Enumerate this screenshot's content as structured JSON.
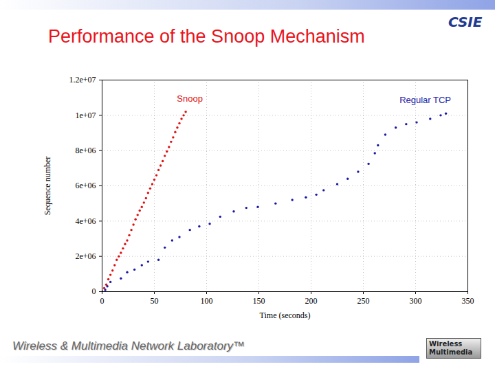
{
  "slide": {
    "title": "Performance of the Snoop Mechanism",
    "footer": "Wireless & Multimedia Network Laboratory™",
    "logos": [
      "CSIE",
      "Wireless Multimedia"
    ]
  },
  "chart_data": {
    "type": "scatter",
    "x_label": "Time (seconds)",
    "y_label": "Sequence number",
    "xlim": [
      0,
      350
    ],
    "xticks": [
      0,
      50,
      100,
      150,
      200,
      250,
      300,
      350
    ],
    "ylim": [
      0,
      12000000
    ],
    "yticks": [
      0,
      {
        "value": 2000000,
        "label": "2e+06"
      },
      {
        "value": 4000000,
        "label": "4e+06"
      },
      {
        "value": 6000000,
        "label": "6e+06"
      },
      {
        "value": 8000000,
        "label": "8e+06"
      },
      {
        "value": 10000000,
        "label": "1e+07"
      },
      {
        "value": 12000000,
        "label": "1.2e+07"
      }
    ],
    "grid": true,
    "series": [
      {
        "name": "Snoop",
        "color": "#e01010",
        "marker": "dot",
        "x": [
          0,
          2,
          4,
          6,
          8,
          10,
          12,
          14,
          16,
          18,
          20,
          22,
          24,
          26,
          28,
          30,
          32,
          34,
          36,
          38,
          40,
          42,
          44,
          46,
          48,
          50,
          52,
          54,
          56,
          58,
          60,
          62,
          64,
          66,
          68,
          70,
          72,
          74,
          76,
          78,
          80
        ],
        "values": [
          0,
          200000,
          400000,
          700000,
          950000,
          1200000,
          1500000,
          1800000,
          2000000,
          2200000,
          2450000,
          2700000,
          2900000,
          3200000,
          3500000,
          3800000,
          4100000,
          4350000,
          4600000,
          4800000,
          5050000,
          5300000,
          5600000,
          5850000,
          6100000,
          6350000,
          6600000,
          6900000,
          7150000,
          7400000,
          7700000,
          7950000,
          8200000,
          8500000,
          8750000,
          9050000,
          9300000,
          9550000,
          9800000,
          10000000,
          10200000
        ]
      },
      {
        "name": "Regular TCP",
        "color": "#1a1aa8",
        "marker": "dot",
        "x": [
          0,
          3,
          5,
          8,
          18,
          24,
          31,
          38,
          44,
          54,
          60,
          67,
          74,
          84,
          93,
          103,
          113,
          126,
          138,
          149,
          166,
          182,
          195,
          205,
          212,
          225,
          235,
          245,
          255,
          261,
          264,
          271,
          281,
          291,
          301,
          314,
          324,
          329
        ],
        "values": [
          0,
          100000,
          300000,
          550000,
          750000,
          1100000,
          1250000,
          1500000,
          1700000,
          1800000,
          2500000,
          2900000,
          3100000,
          3500000,
          3700000,
          3850000,
          4250000,
          4550000,
          4750000,
          4800000,
          5000000,
          5200000,
          5350000,
          5500000,
          5750000,
          6100000,
          6400000,
          6800000,
          7250000,
          7850000,
          8300000,
          8900000,
          9300000,
          9500000,
          9600000,
          9800000,
          10000000,
          10100000
        ]
      }
    ]
  }
}
